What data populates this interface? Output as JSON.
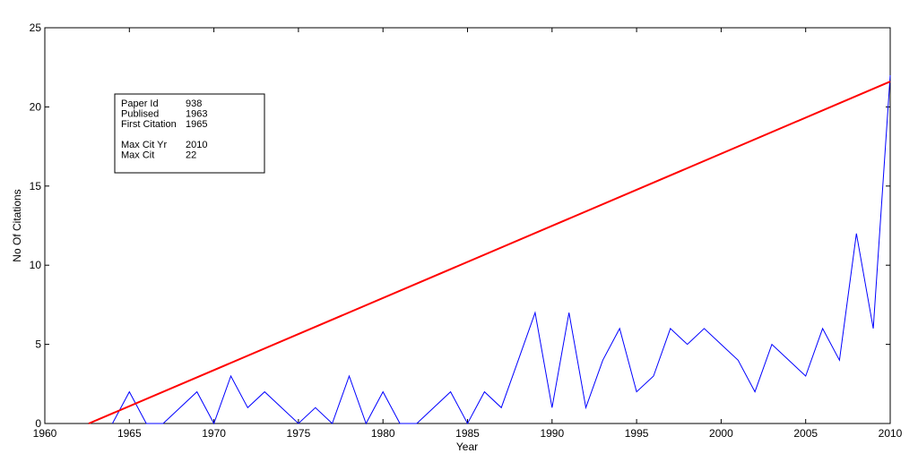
{
  "chart_data": {
    "type": "line",
    "xlabel": "Year",
    "ylabel": "No Of Citations",
    "xlim": [
      1960,
      2010
    ],
    "ylim": [
      0,
      25
    ],
    "xticks": [
      "1960",
      "1965",
      "1970",
      "1975",
      "1980",
      "1985",
      "1990",
      "1995",
      "2000",
      "2005",
      "2010"
    ],
    "yticks": [
      "0",
      "5",
      "10",
      "15",
      "20",
      "25"
    ],
    "grid": false,
    "series": [
      {
        "color": "#0000ff",
        "x": [
          1964,
          1965,
          1966,
          1967,
          1968,
          1969,
          1970,
          1971,
          1972,
          1973,
          1974,
          1975,
          1976,
          1977,
          1978,
          1979,
          1980,
          1981,
          1982,
          1983,
          1984,
          1985,
          1986,
          1987,
          1988,
          1989,
          1990,
          1991,
          1992,
          1993,
          1994,
          1995,
          1996,
          1997,
          1998,
          1999,
          2000,
          2001,
          2002,
          2003,
          2004,
          2005,
          2006,
          2007,
          2008,
          2009,
          2010
        ],
        "y": [
          0,
          2,
          0,
          0,
          1,
          2,
          0,
          3,
          1,
          2,
          1,
          0,
          1,
          0,
          3,
          0,
          2,
          0,
          0,
          1,
          2,
          0,
          2,
          1,
          4,
          7,
          1,
          7,
          1,
          4,
          6,
          2,
          3,
          6,
          5,
          6,
          5,
          4,
          2,
          5,
          4,
          3,
          6,
          4,
          12,
          6,
          22
        ]
      },
      {
        "color": "#ff0000",
        "x": [
          1962.6,
          2010
        ],
        "y": [
          0,
          21.6
        ]
      }
    ],
    "annotation": {
      "rows": [
        {
          "label": "Paper Id",
          "value": "938"
        },
        {
          "label": "Publised",
          "value": "1963"
        },
        {
          "label": "First Citation",
          "value": "1965"
        },
        {
          "label": "",
          "value": ""
        },
        {
          "label": "Max Cit Yr",
          "value": "2010"
        },
        {
          "label": "Max Cit",
          "value": "22"
        }
      ]
    }
  }
}
